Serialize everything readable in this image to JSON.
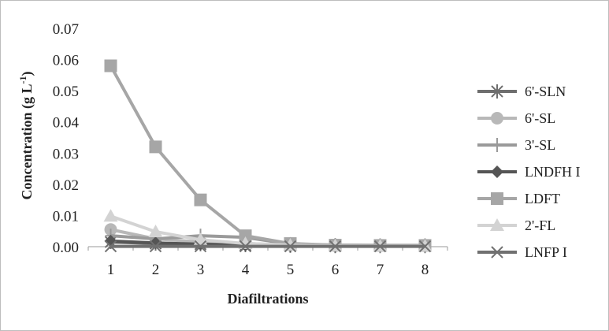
{
  "chart_data": {
    "type": "line",
    "xlabel": "Diafiltrations",
    "ylabel": "Concentration (g L",
    "ylabel_sup": "-1",
    "ylabel_close": ")",
    "x": [
      1,
      2,
      3,
      4,
      5,
      6,
      7,
      8
    ],
    "x_ticks": [
      "1",
      "2",
      "3",
      "4",
      "5",
      "6",
      "7",
      "8"
    ],
    "ylim": [
      0,
      0.07
    ],
    "y_ticks": [
      "0.00",
      "0.01",
      "0.02",
      "0.03",
      "0.04",
      "0.05",
      "0.06",
      "0.07"
    ],
    "grid": false,
    "legend_position": "right",
    "series": [
      {
        "name": "6'-SLN",
        "marker": "asterisk",
        "color": "#6e6e6e",
        "values": [
          0.0015,
          0.001,
          0.0008,
          0.0005,
          0.0003,
          0.0002,
          0.0002,
          0.0002
        ]
      },
      {
        "name": "6'-SL",
        "marker": "circle",
        "color": "#b8b8b8",
        "values": [
          0.0055,
          0.0025,
          0.0015,
          0.001,
          0.0005,
          0.0003,
          0.0003,
          0.0003
        ]
      },
      {
        "name": "3'-SL",
        "marker": "plus",
        "color": "#9a9a9a",
        "values": [
          0.0035,
          0.0025,
          0.0035,
          0.003,
          0.0008,
          0.0005,
          0.0004,
          0.0004
        ]
      },
      {
        "name": "LNDFH I",
        "marker": "diamond",
        "color": "#555555",
        "values": [
          0.0018,
          0.0012,
          0.0008,
          0.0005,
          0.0003,
          0.0002,
          0.0002,
          0.0002
        ]
      },
      {
        "name": "LDFT",
        "marker": "square",
        "color": "#a6a6a6",
        "values": [
          0.058,
          0.032,
          0.015,
          0.0035,
          0.001,
          0.0005,
          0.0004,
          0.0004
        ]
      },
      {
        "name": "2'-FL",
        "marker": "triangle",
        "color": "#d3d3d3",
        "values": [
          0.0098,
          0.0048,
          0.0022,
          0.001,
          0.0005,
          0.0003,
          0.0002,
          0.0002
        ]
      },
      {
        "name": "LNFP I",
        "marker": "x",
        "color": "#707070",
        "values": [
          0.0001,
          0.0001,
          0.0001,
          0.0001,
          0.0001,
          0.0001,
          0.0001,
          0.0001
        ]
      }
    ]
  }
}
